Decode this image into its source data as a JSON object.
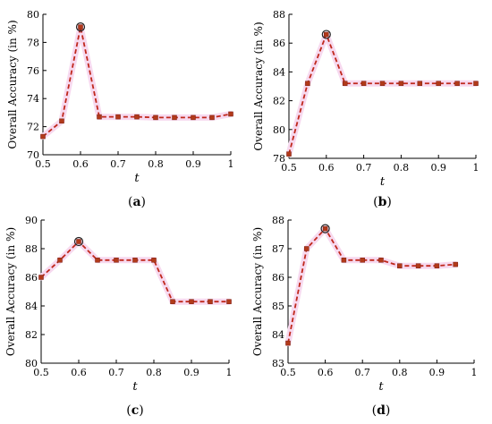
{
  "chart_data": [
    {
      "type": "line",
      "caption": "(a)",
      "xlabel": "t",
      "ylabel": "Overall Accuracy (in %)",
      "xlim": [
        0.5,
        1
      ],
      "ylim": [
        70,
        80
      ],
      "xticks": [
        0.5,
        0.6,
        0.7,
        0.8,
        0.9,
        1
      ],
      "xtick_labels": [
        "0.5",
        "0.6",
        "0.7",
        "0.8",
        "0.9",
        "1"
      ],
      "yticks": [
        70,
        72,
        74,
        76,
        78,
        80
      ],
      "x": [
        0.5,
        0.55,
        0.6,
        0.65,
        0.7,
        0.75,
        0.8,
        0.85,
        0.9,
        0.95,
        1.0
      ],
      "series": [
        {
          "values": [
            71.3,
            72.4,
            79.1,
            72.7,
            72.7,
            72.7,
            72.65,
            72.65,
            72.65,
            72.65,
            72.9
          ]
        }
      ],
      "highlight_index": 2
    },
    {
      "type": "line",
      "caption": "(b)",
      "xlabel": "t",
      "ylabel": "Overall Accuracy (in %)",
      "xlim": [
        0.5,
        1
      ],
      "ylim": [
        78,
        88
      ],
      "xticks": [
        0.5,
        0.6,
        0.7,
        0.8,
        0.9,
        1
      ],
      "xtick_labels": [
        "0.5",
        "0.6",
        "0.7",
        "0.8",
        "0.9",
        "1"
      ],
      "yticks": [
        78,
        80,
        82,
        84,
        86,
        88
      ],
      "x": [
        0.5,
        0.55,
        0.6,
        0.65,
        0.7,
        0.75,
        0.8,
        0.85,
        0.9,
        0.95,
        1.0
      ],
      "series": [
        {
          "values": [
            78.3,
            83.2,
            86.6,
            83.2,
            83.2,
            83.2,
            83.2,
            83.2,
            83.2,
            83.2,
            83.2
          ]
        }
      ],
      "highlight_index": 2
    },
    {
      "type": "line",
      "caption": "(c)",
      "xlabel": "t",
      "ylabel": "Overall Accuracy (in %)",
      "xlim": [
        0.5,
        1
      ],
      "ylim": [
        80,
        90
      ],
      "xticks": [
        0.5,
        0.6,
        0.7,
        0.8,
        0.9,
        1
      ],
      "xtick_labels": [
        "0.5",
        "0.6",
        "0.7",
        "0.8",
        "0.9",
        "1"
      ],
      "yticks": [
        80,
        82,
        84,
        86,
        88,
        90
      ],
      "x": [
        0.5,
        0.55,
        0.6,
        0.65,
        0.7,
        0.75,
        0.8,
        0.85,
        0.9,
        0.95,
        1.0
      ],
      "series": [
        {
          "values": [
            86.0,
            87.2,
            88.5,
            87.2,
            87.2,
            87.2,
            87.2,
            84.3,
            84.3,
            84.3,
            84.3
          ]
        }
      ],
      "highlight_index": 2
    },
    {
      "type": "line",
      "caption": "(d)",
      "xlabel": "t",
      "ylabel": "Overall Accuracy (in %)",
      "xlim": [
        0.5,
        1
      ],
      "ylim": [
        83,
        88
      ],
      "xticks": [
        0.5,
        0.6,
        0.7,
        0.8,
        0.9,
        1
      ],
      "xtick_labels": [
        "0.5",
        "0.6",
        "0.7",
        "0.8",
        "0.9",
        "1"
      ],
      "yticks": [
        83,
        84,
        85,
        86,
        87,
        88
      ],
      "x": [
        0.5,
        0.55,
        0.6,
        0.65,
        0.7,
        0.75,
        0.8,
        0.85,
        0.9,
        0.95
      ],
      "series": [
        {
          "values": [
            83.7,
            87.0,
            87.7,
            86.6,
            86.6,
            86.6,
            86.4,
            86.4,
            86.4,
            86.45
          ]
        }
      ],
      "highlight_index": 2
    }
  ]
}
